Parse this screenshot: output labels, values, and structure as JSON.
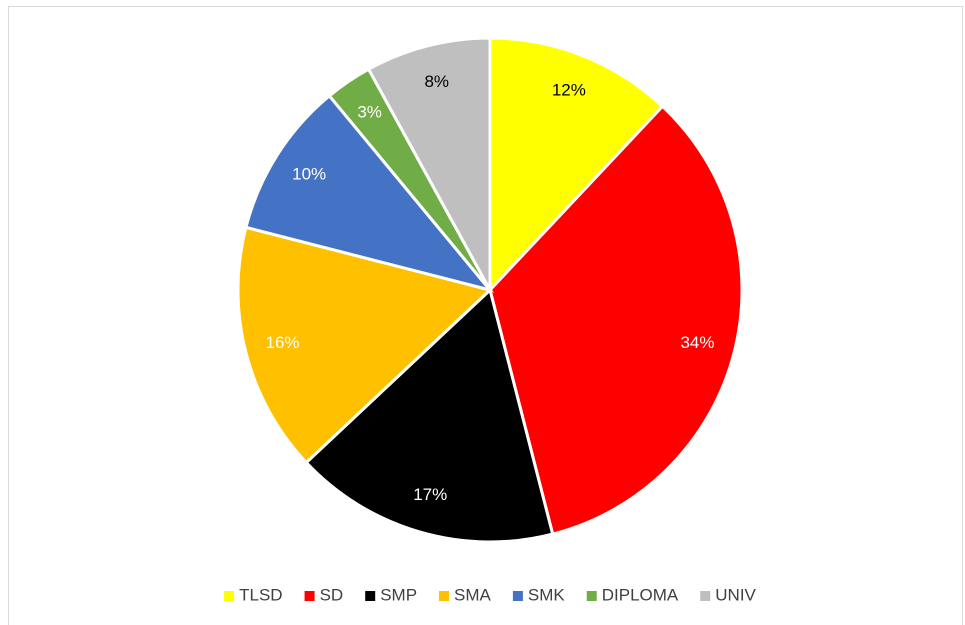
{
  "chart_data": {
    "type": "pie",
    "categories": [
      "TLSD",
      "SD",
      "SMP",
      "SMA",
      "SMK",
      "DIPLOMA",
      "UNIV"
    ],
    "values": [
      12,
      34,
      17,
      16,
      10,
      3,
      8
    ],
    "value_labels": [
      "12%",
      "34%",
      "17%",
      "16%",
      "10%",
      "3%",
      "8%"
    ],
    "colors": [
      "#ffff00",
      "#ff0000",
      "#000000",
      "#ffc000",
      "#4472c4",
      "#70ad47",
      "#bfbfbf"
    ],
    "label_colors": [
      "#000000",
      "#ffffff",
      "#ffffff",
      "#ffffff",
      "#ffffff",
      "#ffffff",
      "#000000"
    ],
    "legend": "bottom"
  }
}
